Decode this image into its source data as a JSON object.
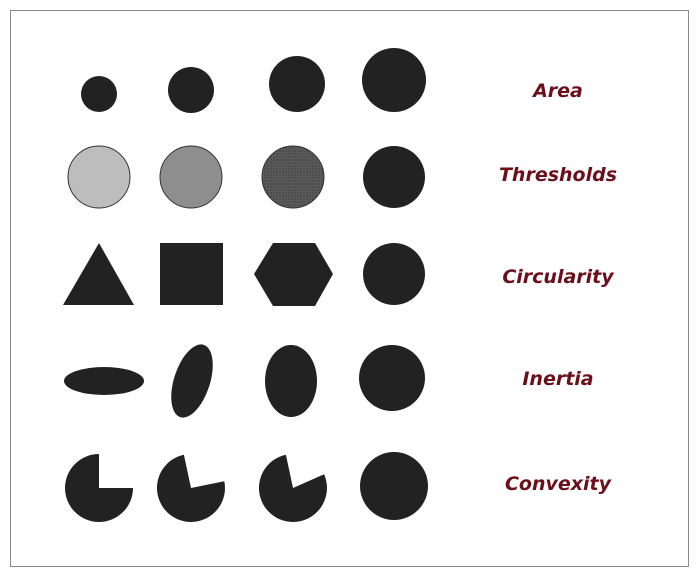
{
  "colors": {
    "shape_fill": "#222222",
    "shape_stroke": "#111111",
    "label_color": "#6b0f1a",
    "threshold_light": "#bdbdbd",
    "threshold_mid": "#8e8e8e",
    "threshold_dark": "#5a5a5a",
    "frame_border": "#8a8a8a"
  },
  "rows": [
    {
      "label": "Area",
      "shapes": [
        "small-circle",
        "medium-circle",
        "large-circle",
        "largest-circle"
      ]
    },
    {
      "label": "Thresholds",
      "shapes": [
        "light-gray-circle",
        "mid-gray-circle",
        "dark-dotted-circle",
        "black-circle"
      ]
    },
    {
      "label": "Circularity",
      "shapes": [
        "triangle",
        "square",
        "hexagon",
        "circle"
      ]
    },
    {
      "label": "Inertia",
      "shapes": [
        "flat-ellipse",
        "tilted-ellipse",
        "upright-ellipse",
        "circle"
      ]
    },
    {
      "label": "Convexity",
      "shapes": [
        "quarter-missing-circle",
        "wedge-missing-circle",
        "narrow-wedge-missing-circle",
        "circle"
      ]
    }
  ]
}
